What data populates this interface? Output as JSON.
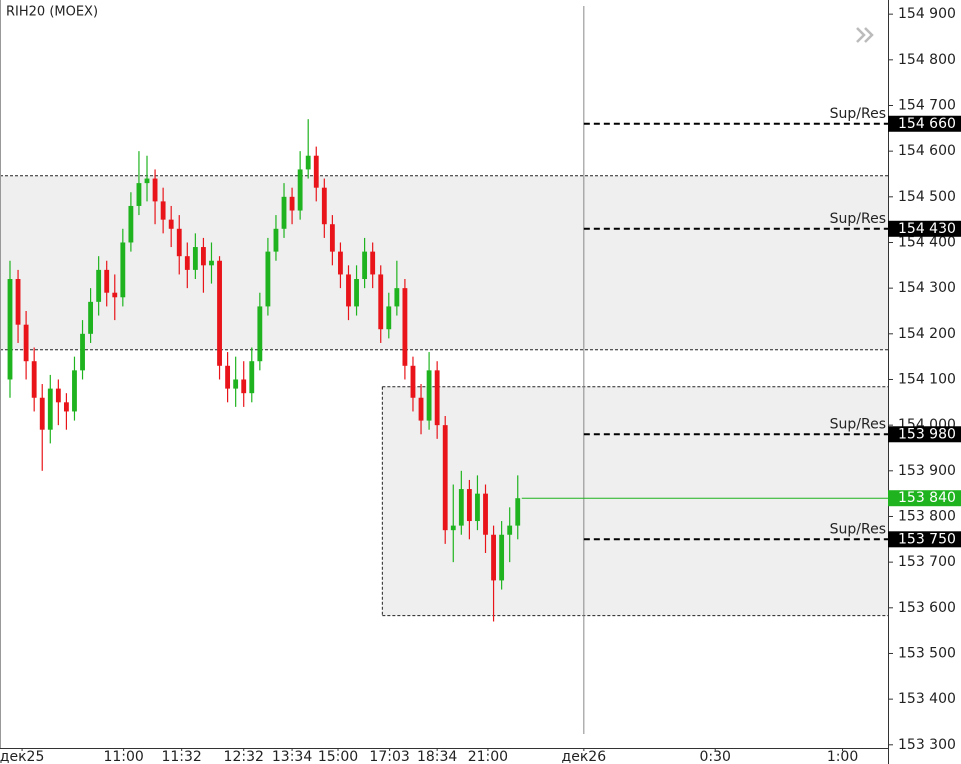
{
  "chart_data": {
    "type": "candlestick",
    "title": "RIH20 (MOEX)",
    "up_color": "#1fb41f",
    "down_color": "#e8141a",
    "open": [
      154100,
      154320,
      154220,
      154140,
      154060,
      153990,
      154080,
      154050,
      154030,
      154120,
      154200,
      154270,
      154340,
      154290,
      154280,
      154400,
      154480,
      154530,
      154540,
      154490,
      154450,
      154430,
      154370,
      154340,
      154390,
      154350,
      154360,
      154130,
      154080,
      154100,
      154070,
      154140,
      154260,
      154380,
      154430,
      154500,
      154470,
      154560,
      154590,
      154520,
      154440,
      154380,
      154330,
      154260,
      154320,
      154380,
      154330,
      154210,
      154260,
      154300,
      154130,
      154060,
      154010,
      154120,
      154000,
      153770,
      153780,
      153860,
      153790,
      153850,
      153760,
      153660,
      153760,
      153780
    ],
    "high": [
      154360,
      154340,
      154250,
      154170,
      154090,
      154110,
      154100,
      154070,
      154150,
      154230,
      154300,
      154370,
      154360,
      154330,
      154430,
      154510,
      154600,
      154590,
      154560,
      154520,
      154480,
      154460,
      154400,
      154420,
      154410,
      154400,
      154370,
      154160,
      154150,
      154140,
      154170,
      154290,
      154410,
      154460,
      154530,
      154520,
      154600,
      154670,
      154610,
      154540,
      154460,
      154400,
      154350,
      154350,
      154410,
      154400,
      154350,
      154290,
      154360,
      154320,
      154150,
      154090,
      154160,
      154140,
      154020,
      153870,
      153900,
      153880,
      153890,
      153870,
      153780,
      153790,
      153820,
      153890
    ],
    "low": [
      154060,
      154180,
      154100,
      154030,
      153900,
      153960,
      154000,
      153990,
      154010,
      154100,
      154180,
      154240,
      154260,
      154230,
      154260,
      154380,
      154460,
      154490,
      154440,
      154420,
      154390,
      154330,
      154300,
      154320,
      154290,
      154310,
      154100,
      154050,
      154040,
      154040,
      154050,
      154120,
      154240,
      154360,
      154410,
      154440,
      154450,
      154540,
      154490,
      154410,
      154350,
      154300,
      154230,
      154240,
      154300,
      154300,
      154180,
      154190,
      154240,
      154100,
      154030,
      153980,
      153990,
      153970,
      153740,
      153700,
      153760,
      153750,
      153770,
      153720,
      153570,
      153640,
      153700,
      153750
    ],
    "close": [
      154320,
      154220,
      154140,
      154060,
      153990,
      154080,
      154050,
      154030,
      154120,
      154200,
      154270,
      154340,
      154290,
      154280,
      154400,
      154480,
      154530,
      154540,
      154490,
      154450,
      154430,
      154370,
      154340,
      154390,
      154350,
      154360,
      154130,
      154080,
      154100,
      154070,
      154140,
      154260,
      154380,
      154430,
      154500,
      154470,
      154560,
      154590,
      154520,
      154440,
      154380,
      154330,
      154260,
      154320,
      154380,
      154330,
      154210,
      154260,
      154300,
      154130,
      154060,
      154010,
      154120,
      154000,
      153770,
      153780,
      153860,
      153790,
      153850,
      153760,
      153660,
      153760,
      153780,
      153840
    ],
    "xlim": [
      -1.24,
      108.94
    ],
    "xticks": [
      {
        "value": 1.5,
        "label": "дек25"
      },
      {
        "value": 14.1,
        "label": "11:00"
      },
      {
        "value": 21.3,
        "label": "11:32"
      },
      {
        "value": 29,
        "label": "12:32"
      },
      {
        "value": 35,
        "label": "13:34"
      },
      {
        "value": 40.7,
        "label": "15:00"
      },
      {
        "value": 47.1,
        "label": "17:03"
      },
      {
        "value": 53,
        "label": "18:34"
      },
      {
        "value": 59.3,
        "label": "21:00"
      },
      {
        "value": 71.2,
        "label": "дек26"
      },
      {
        "value": 87.5,
        "label": "0:30"
      },
      {
        "value": 103.3,
        "label": "1:00"
      }
    ],
    "ylim": [
      153293,
      154931
    ],
    "yticks": [
      {
        "value": 153300,
        "label": "153 300"
      },
      {
        "value": 153400,
        "label": "153 400"
      },
      {
        "value": 153500,
        "label": "153 500"
      },
      {
        "value": 153600,
        "label": "153 600"
      },
      {
        "value": 153700,
        "label": "153 700"
      },
      {
        "value": 153800,
        "label": "153 800"
      },
      {
        "value": 153900,
        "label": "153 900"
      },
      {
        "value": 154000,
        "label": "154 000"
      },
      {
        "value": 154100,
        "label": "154 100"
      },
      {
        "value": 154200,
        "label": "154 200"
      },
      {
        "value": 154300,
        "label": "154 300"
      },
      {
        "value": 154400,
        "label": "154 400"
      },
      {
        "value": 154500,
        "label": "154 500"
      },
      {
        "value": 154600,
        "label": "154 600"
      },
      {
        "value": 154700,
        "label": "154 700"
      },
      {
        "value": 154800,
        "label": "154 800"
      },
      {
        "value": 154900,
        "label": "154 900"
      }
    ],
    "zones": [
      {
        "x_start": -1.24,
        "low": 154165,
        "high": 154546
      },
      {
        "x_start": 46.2,
        "low": 153583,
        "high": 154084
      }
    ],
    "vline": 71.2,
    "levels": [
      {
        "value": 154660,
        "label": "154 660",
        "text": "Sup/Res"
      },
      {
        "value": 154430,
        "label": "154 430",
        "text": "Sup/Res"
      },
      {
        "value": 153980,
        "label": "153 980",
        "text": "Sup/Res"
      },
      {
        "value": 153750,
        "label": "153 750",
        "text": "Sup/Res"
      }
    ],
    "last_price": {
      "value": 153840,
      "label": "153 840"
    }
  }
}
